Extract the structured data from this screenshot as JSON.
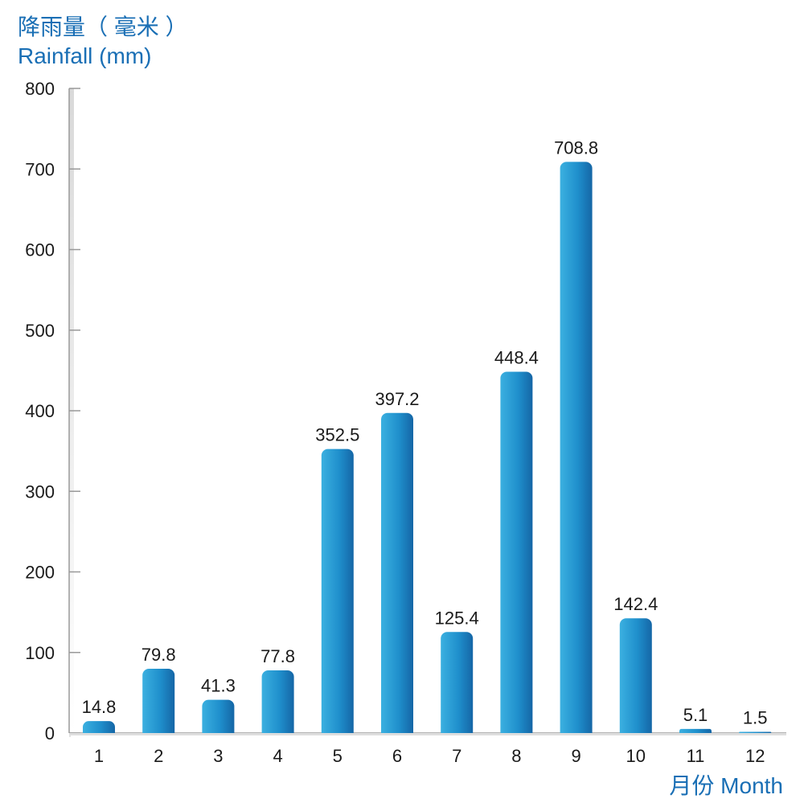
{
  "chart_data": {
    "type": "bar",
    "ylabel": "降雨量（ 毫米 ）",
    "ylabel_en": "Rainfall (mm)",
    "xlabel": "月份  Month",
    "categories": [
      "1",
      "2",
      "3",
      "4",
      "5",
      "6",
      "7",
      "8",
      "9",
      "10",
      "11",
      "12"
    ],
    "values": [
      14.8,
      79.8,
      41.3,
      77.8,
      352.5,
      397.2,
      125.4,
      448.4,
      708.8,
      142.4,
      5.1,
      1.5
    ],
    "value_labels": [
      "14.8",
      "79.8",
      "41.3",
      "77.8",
      "352.5",
      "397.2",
      "125.4",
      "448.4",
      "708.8",
      "142.4",
      "5.1",
      "1.5"
    ],
    "yticks": [
      0,
      100,
      200,
      300,
      400,
      500,
      600,
      700,
      800
    ],
    "ylim": [
      0,
      800
    ],
    "grid": false,
    "bar_color": "#1f8fcc",
    "bar_color_dark": "#1670ad",
    "axis_color": "#999999"
  }
}
